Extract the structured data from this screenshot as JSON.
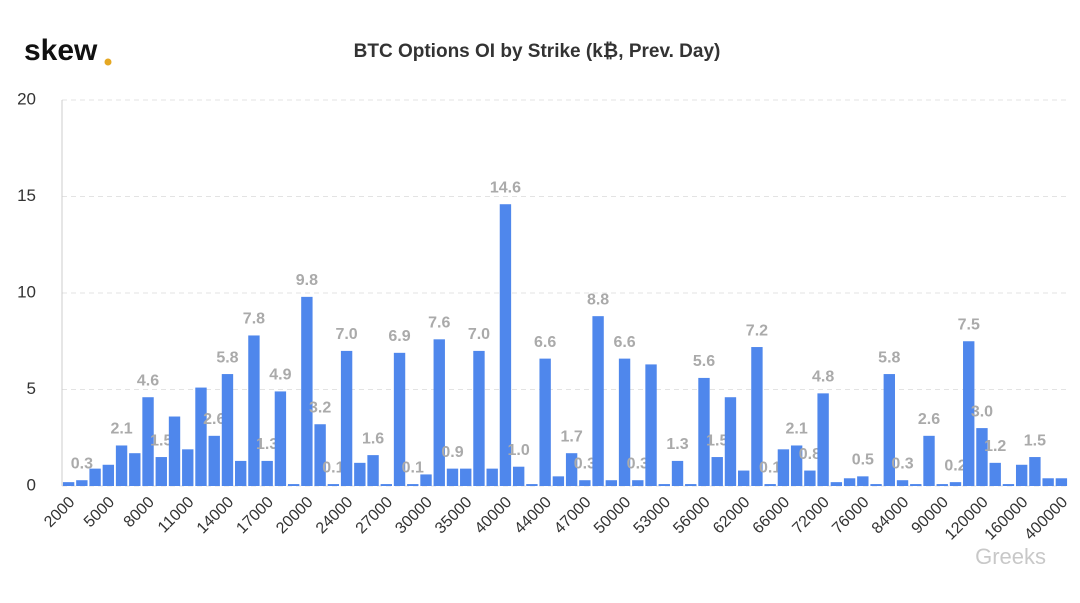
{
  "brand": "skew",
  "watermark": "Greeks",
  "chart_data": {
    "type": "bar",
    "title": "BTC Options OI by Strike (k₿, Prev. Day)",
    "categories": [
      "2000",
      null,
      null,
      "5000",
      null,
      null,
      "8000",
      null,
      null,
      "11000",
      null,
      null,
      "14000",
      null,
      null,
      "17000",
      null,
      null,
      "20000",
      null,
      null,
      "24000",
      null,
      null,
      "27000",
      null,
      null,
      "30000",
      null,
      null,
      "35000",
      null,
      null,
      "40000",
      null,
      null,
      "44000",
      null,
      null,
      "47000",
      null,
      null,
      "50000",
      null,
      null,
      "53000",
      null,
      null,
      "56000",
      null,
      null,
      "62000",
      null,
      null,
      "66000",
      null,
      null,
      "72000",
      null,
      null,
      "76000",
      null,
      null,
      "84000",
      null,
      null,
      "90000",
      null,
      null,
      "120000",
      null,
      null,
      "160000",
      null,
      null,
      "400000"
    ],
    "values": [
      0.2,
      0.3,
      0.9,
      1.1,
      2.1,
      1.7,
      4.6,
      1.5,
      3.6,
      1.9,
      5.1,
      2.6,
      5.8,
      1.3,
      7.8,
      1.3,
      4.9,
      0.1,
      9.8,
      3.2,
      0.1,
      7.0,
      1.2,
      1.6,
      0.1,
      6.9,
      0.1,
      0.6,
      7.6,
      0.9,
      0.9,
      7.0,
      0.9,
      14.6,
      1.0,
      0.1,
      6.6,
      0.5,
      1.7,
      0.3,
      8.8,
      0.3,
      6.6,
      0.3,
      6.3,
      0.1,
      1.3,
      0.1,
      5.6,
      1.5,
      4.6,
      0.8,
      7.2,
      0.1,
      1.9,
      2.1,
      0.8,
      4.8,
      0.2,
      0.4,
      0.5,
      0.1,
      5.8,
      0.3,
      0.1,
      2.6,
      0.1,
      0.2,
      7.5,
      3.0,
      1.2,
      0.1,
      1.1,
      1.5,
      0.4,
      0.4
    ],
    "value_labels": [
      null,
      "0.3",
      null,
      null,
      "2.1",
      null,
      "4.6",
      "1.5",
      null,
      null,
      null,
      "2.6",
      "5.8",
      null,
      "7.8",
      "1.3",
      "4.9",
      null,
      "9.8",
      "3.2",
      "0.1",
      "7.0",
      null,
      "1.6",
      null,
      "6.9",
      "0.1",
      null,
      "7.6",
      "0.9",
      null,
      "7.0",
      null,
      "14.6",
      "1.0",
      null,
      "6.6",
      null,
      "1.7",
      "0.3",
      "8.8",
      null,
      "6.6",
      "0.3",
      null,
      null,
      "1.3",
      null,
      "5.6",
      "1.5",
      null,
      null,
      "7.2",
      "0.1",
      null,
      "2.1",
      "0.8",
      "4.8",
      null,
      null,
      "0.5",
      null,
      "5.8",
      "0.3",
      null,
      "2.6",
      null,
      "0.2",
      "7.5",
      "3.0",
      "1.2",
      null,
      null,
      "1.5",
      null,
      null
    ],
    "color": "#4f87ec",
    "ylim": [
      0,
      20
    ],
    "yticks": [
      0,
      5,
      10,
      15,
      20
    ],
    "grid": true
  }
}
